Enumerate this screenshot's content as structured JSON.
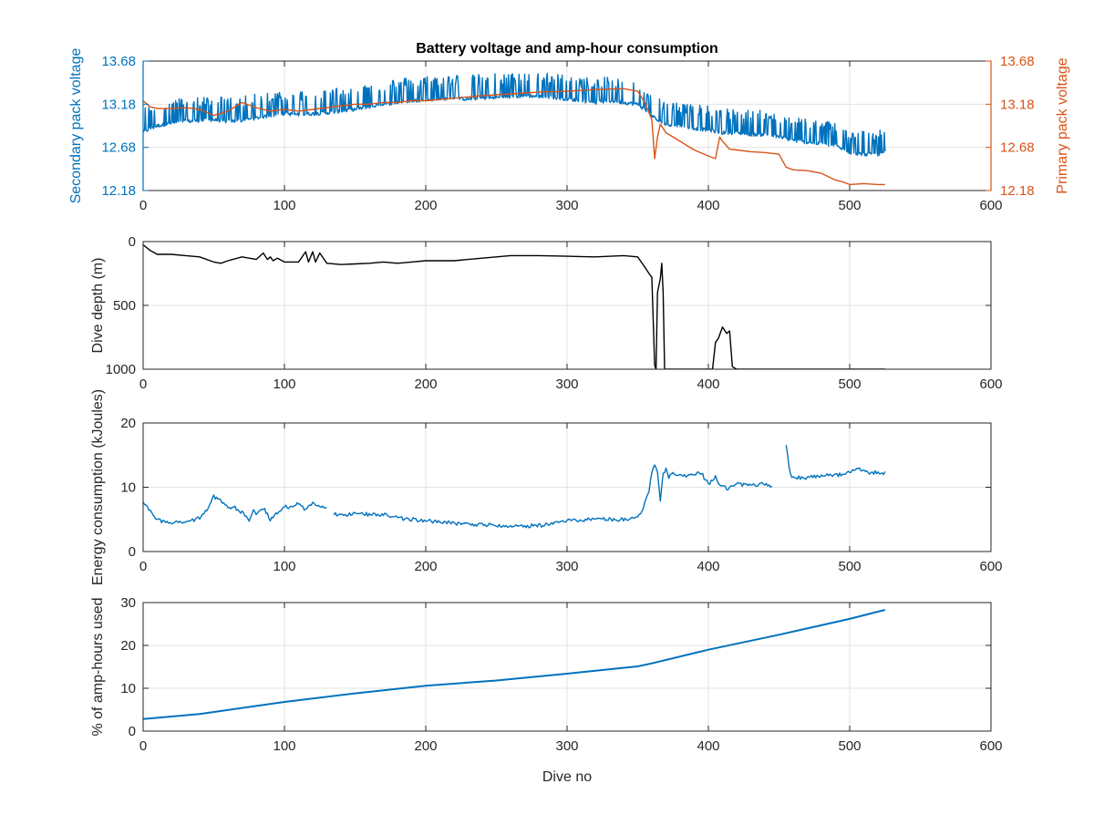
{
  "chart_data": [
    {
      "type": "line",
      "title": "Battery voltage and amp-hour consumption",
      "xlabel": "",
      "xlim": [
        0,
        600
      ],
      "xticks": [
        0,
        100,
        200,
        300,
        400,
        500,
        600
      ],
      "grid": true,
      "left_axis": {
        "label": "Secondary pack voltage",
        "color": "#0072BD",
        "ylim": [
          12.18,
          13.68
        ],
        "ticks": [
          "12.18",
          "12.68",
          "13.18",
          "13.68"
        ]
      },
      "right_axis": {
        "label": "Primary pack voltage",
        "color": "#D95319",
        "ylim": [
          12.18,
          13.68
        ],
        "ticks": [
          "12.18",
          "12.68",
          "13.18",
          "13.68"
        ]
      },
      "series": [
        {
          "axis": "left",
          "color": "#0072BD",
          "x": [
            0,
            10,
            20,
            30,
            40,
            50,
            60,
            70,
            80,
            90,
            100,
            110,
            120,
            130,
            140,
            150,
            160,
            170,
            180,
            190,
            200,
            210,
            220,
            230,
            240,
            250,
            260,
            270,
            280,
            290,
            300,
            310,
            320,
            330,
            340,
            350,
            360,
            365,
            370,
            380,
            390,
            400,
            410,
            420,
            430,
            440,
            450,
            460,
            470,
            480,
            490,
            500,
            510,
            520,
            525
          ],
          "y": [
            12.86,
            12.93,
            12.96,
            12.98,
            12.99,
            13.0,
            12.98,
            12.99,
            13.02,
            13.05,
            13.07,
            13.06,
            13.07,
            13.08,
            13.1,
            13.12,
            13.15,
            13.18,
            13.2,
            13.22,
            13.23,
            13.24,
            13.25,
            13.24,
            13.25,
            13.26,
            13.26,
            13.28,
            13.27,
            13.26,
            13.24,
            13.22,
            13.2,
            13.22,
            13.2,
            13.18,
            13.05,
            12.98,
            12.95,
            12.93,
            12.9,
            12.88,
            12.85,
            12.85,
            12.83,
            12.83,
            12.8,
            12.76,
            12.74,
            12.72,
            12.7,
            12.62,
            12.6,
            12.6,
            12.62
          ],
          "spike_amplitude": 0.28
        },
        {
          "axis": "right",
          "color": "#D95319",
          "x": [
            0,
            5,
            10,
            20,
            30,
            40,
            50,
            60,
            70,
            80,
            90,
            100,
            110,
            120,
            130,
            140,
            150,
            160,
            170,
            180,
            190,
            200,
            220,
            240,
            260,
            280,
            300,
            320,
            340,
            350,
            355,
            360,
            362,
            364,
            366,
            370,
            380,
            390,
            400,
            405,
            408,
            410,
            415,
            420,
            430,
            440,
            450,
            455,
            460,
            470,
            480,
            490,
            495,
            500,
            510,
            520,
            525
          ],
          "y": [
            13.22,
            13.15,
            13.13,
            13.13,
            13.14,
            13.12,
            13.05,
            13.1,
            13.2,
            13.14,
            13.1,
            13.12,
            13.1,
            13.12,
            13.14,
            13.16,
            13.18,
            13.18,
            13.2,
            13.2,
            13.22,
            13.22,
            13.25,
            13.28,
            13.3,
            13.32,
            13.33,
            13.35,
            13.36,
            13.33,
            13.2,
            13.0,
            12.55,
            12.8,
            12.95,
            12.85,
            12.75,
            12.65,
            12.58,
            12.55,
            12.8,
            12.75,
            12.66,
            12.65,
            12.63,
            12.62,
            12.6,
            12.45,
            12.42,
            12.41,
            12.38,
            12.3,
            12.28,
            12.25,
            12.26,
            12.25,
            12.25
          ]
        }
      ]
    },
    {
      "type": "line",
      "title": "",
      "xlabel": "",
      "ylabel": "Dive depth (m)",
      "xlim": [
        0,
        600
      ],
      "ylim": [
        0,
        1000
      ],
      "y_reversed": true,
      "xticks": [
        0,
        100,
        200,
        300,
        400,
        500,
        600
      ],
      "yticks": [
        0,
        500,
        1000
      ],
      "grid": true,
      "series": [
        {
          "color": "#000000",
          "x": [
            0,
            5,
            10,
            20,
            30,
            40,
            50,
            55,
            60,
            70,
            80,
            85,
            88,
            90,
            92,
            95,
            100,
            110,
            115,
            117,
            120,
            122,
            125,
            130,
            140,
            150,
            160,
            170,
            180,
            190,
            200,
            220,
            240,
            260,
            280,
            300,
            320,
            340,
            350,
            355,
            358,
            360,
            362,
            363,
            364,
            366,
            367,
            368,
            369,
            372,
            380,
            390,
            400,
            403,
            405,
            407,
            410,
            413,
            415,
            417,
            420,
            430,
            440,
            450,
            460,
            470,
            480,
            490,
            500,
            510,
            520,
            525
          ],
          "y": [
            25,
            70,
            100,
            100,
            110,
            120,
            160,
            170,
            150,
            120,
            140,
            90,
            140,
            120,
            150,
            130,
            160,
            160,
            80,
            160,
            80,
            160,
            90,
            170,
            180,
            175,
            170,
            160,
            170,
            160,
            150,
            150,
            130,
            110,
            110,
            115,
            120,
            110,
            120,
            200,
            250,
            280,
            970,
            1000,
            400,
            290,
            170,
            400,
            1000,
            1000,
            1000,
            1000,
            1000,
            1000,
            790,
            760,
            670,
            720,
            700,
            980,
            1000,
            1000,
            1000,
            1000,
            1000,
            1000,
            1000,
            1000,
            1000,
            1000,
            1000,
            1000
          ]
        }
      ]
    },
    {
      "type": "line",
      "title": "",
      "xlabel": "",
      "ylabel": "Energy consumption (kJoules)",
      "xlim": [
        0,
        600
      ],
      "ylim": [
        0,
        20
      ],
      "xticks": [
        0,
        100,
        200,
        300,
        400,
        500,
        600
      ],
      "yticks": [
        0,
        10,
        20
      ],
      "grid": true,
      "series": [
        {
          "color": "#0072BD",
          "segments": [
            {
              "x": [
                0,
                3,
                6,
                10,
                15,
                20,
                30,
                40,
                45,
                50,
                55,
                60,
                65,
                70,
                75,
                78,
                80,
                85,
                90,
                95,
                100,
                105,
                110,
                115,
                120,
                125,
                130
              ],
              "y": [
                7.5,
                7.0,
                6.2,
                5.0,
                4.6,
                4.5,
                4.6,
                5.2,
                6.5,
                8.5,
                8.0,
                7.0,
                6.8,
                6.0,
                5.0,
                6.5,
                5.5,
                6.8,
                5.0,
                6.0,
                7.2,
                6.8,
                7.5,
                6.5,
                7.5,
                6.8,
                7.0
              ]
            },
            {
              "x": [
                135,
                150,
                170,
                180,
                190,
                200,
                220,
                240,
                260,
                280,
                290,
                300,
                320,
                340,
                350,
                355,
                358,
                360,
                362,
                364,
                366,
                368,
                370,
                372,
                375,
                378,
                380,
                390,
                395,
                400,
                405,
                410,
                415,
                420,
                430,
                440,
                445
              ],
              "y": [
                5.8,
                5.8,
                5.8,
                5.2,
                5.0,
                4.8,
                4.4,
                4.2,
                4.0,
                4.0,
                4.4,
                4.8,
                5.0,
                5.0,
                5.2,
                7.5,
                9.5,
                12.5,
                13.2,
                12.5,
                8.0,
                12.0,
                13.0,
                11.5,
                12.5,
                11.8,
                11.8,
                12.0,
                12.2,
                10.5,
                11.5,
                10.0,
                9.8,
                10.5,
                10.2,
                10.5,
                10.0
              ]
            },
            {
              "x": [
                455,
                458,
                460,
                470,
                480,
                490,
                500,
                505,
                510,
                515,
                520,
                525
              ],
              "y": [
                16.5,
                12.0,
                11.5,
                11.5,
                11.8,
                11.8,
                12.3,
                12.8,
                12.8,
                12.2,
                12.4,
                12.2
              ]
            }
          ],
          "jitter": 0.3
        }
      ]
    },
    {
      "type": "line",
      "title": "",
      "xlabel": "Dive no",
      "ylabel": "% of amp-hours used",
      "xlim": [
        0,
        600
      ],
      "ylim": [
        0,
        30
      ],
      "xticks": [
        0,
        100,
        200,
        300,
        400,
        500,
        600
      ],
      "yticks": [
        0,
        10,
        20,
        30
      ],
      "grid": true,
      "series": [
        {
          "color": "#0072BD",
          "x": [
            0,
            40,
            100,
            150,
            200,
            250,
            300,
            350,
            360,
            400,
            450,
            500,
            525
          ],
          "y": [
            2.8,
            4.0,
            6.8,
            8.8,
            10.6,
            11.8,
            13.4,
            15.1,
            15.8,
            19.0,
            22.5,
            26.2,
            28.3
          ]
        }
      ]
    }
  ]
}
